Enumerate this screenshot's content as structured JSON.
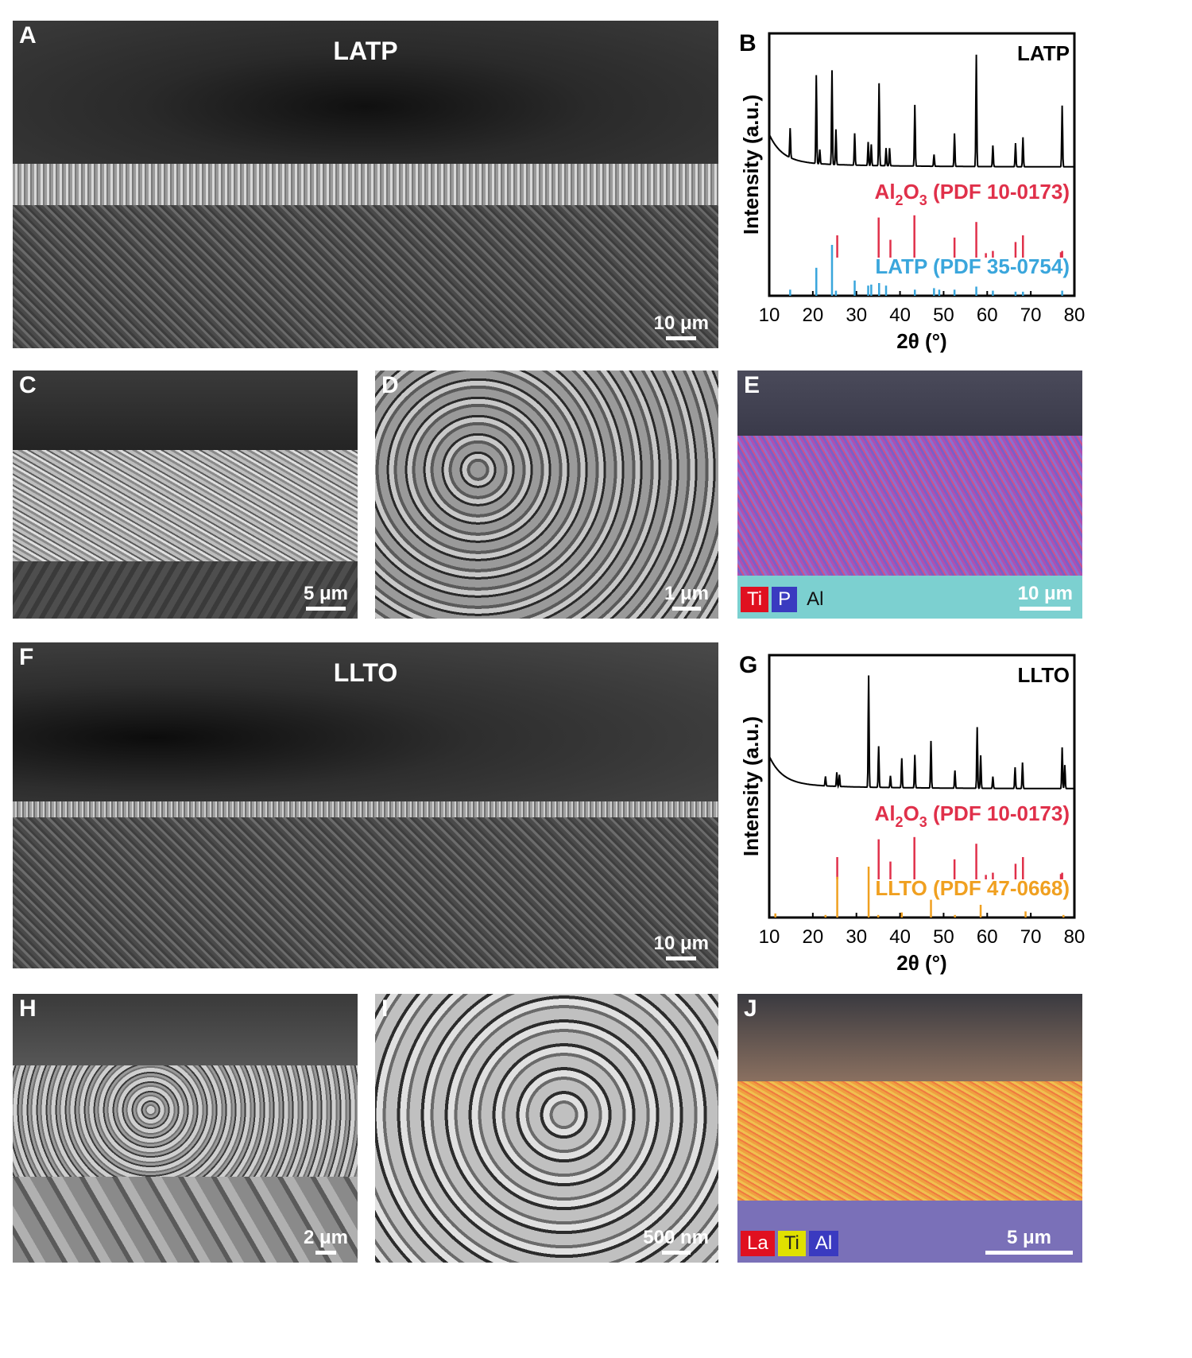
{
  "panels": {
    "A": {
      "label": "A",
      "title": "LATP",
      "scale": "10 μm"
    },
    "C": {
      "label": "C",
      "scale": "5 μm"
    },
    "D": {
      "label": "D",
      "scale": "1 μm"
    },
    "E": {
      "label": "E",
      "scale": "10 μm",
      "legend": [
        "Ti",
        "P",
        "Al"
      ]
    },
    "F": {
      "label": "F",
      "title": "LLTO",
      "scale": "10 μm"
    },
    "H": {
      "label": "H",
      "scale": "2 μm"
    },
    "I": {
      "label": "I",
      "scale": "500 nm"
    },
    "J": {
      "label": "J",
      "scale": "5 μm",
      "legend": [
        "La",
        "Ti",
        "Al"
      ]
    }
  },
  "colors": {
    "al2o3": "#e0304a",
    "latp": "#3aa6dc",
    "llto": "#f0a020",
    "pattern": "#000000",
    "ti_map": "#d01020",
    "p_map": "#3a3ac0",
    "al_map": "#111111",
    "la_map": "#d01020",
    "ti_map_j": "#e0e000",
    "al_map_j": "#3a3ac0"
  },
  "chart_data": [
    {
      "panel": "B",
      "type": "line",
      "label": "B",
      "tag": "LATP",
      "xlabel": "2θ (°)",
      "ylabel": "Intensity (a.u.)",
      "xlim": [
        10,
        80
      ],
      "xticks": [
        10,
        20,
        30,
        40,
        50,
        60,
        70,
        80
      ],
      "pattern_peaks": [
        [
          14.8,
          0.25
        ],
        [
          20.8,
          0.75
        ],
        [
          21.6,
          0.12
        ],
        [
          24.4,
          0.8
        ],
        [
          25.3,
          0.3
        ],
        [
          29.6,
          0.27
        ],
        [
          32.7,
          0.2
        ],
        [
          33.4,
          0.18
        ],
        [
          35.2,
          0.7
        ],
        [
          36.8,
          0.15
        ],
        [
          37.6,
          0.15
        ],
        [
          43.4,
          0.52
        ],
        [
          47.8,
          0.1
        ],
        [
          52.5,
          0.28
        ],
        [
          57.5,
          0.95
        ],
        [
          61.3,
          0.18
        ],
        [
          66.5,
          0.2
        ],
        [
          68.2,
          0.25
        ],
        [
          77.2,
          0.52
        ]
      ],
      "references": [
        {
          "name": "Al2O3 (PDF 10-0173)",
          "sub": "Al",
          "sub_index": "2",
          "o": "O",
          "o_index": "3",
          "rest": "(PDF 10-0173)",
          "color_key": "al2o3",
          "sticks": [
            [
              25.6,
              0.5
            ],
            [
              35.1,
              0.9
            ],
            [
              37.8,
              0.4
            ],
            [
              43.3,
              0.95
            ],
            [
              52.5,
              0.45
            ],
            [
              57.5,
              0.8
            ],
            [
              59.7,
              0.1
            ],
            [
              61.3,
              0.15
            ],
            [
              66.5,
              0.35
            ],
            [
              68.2,
              0.5
            ],
            [
              76.9,
              0.12
            ],
            [
              77.2,
              0.15
            ]
          ]
        },
        {
          "name": "LATP (PDF 35-0754)",
          "color_key": "latp",
          "sticks": [
            [
              14.8,
              0.12
            ],
            [
              20.8,
              0.55
            ],
            [
              24.4,
              1.0
            ],
            [
              25.3,
              0.1
            ],
            [
              29.6,
              0.3
            ],
            [
              32.7,
              0.2
            ],
            [
              33.4,
              0.22
            ],
            [
              35.2,
              0.25
            ],
            [
              36.8,
              0.2
            ],
            [
              43.4,
              0.12
            ],
            [
              47.8,
              0.15
            ],
            [
              49.0,
              0.12
            ],
            [
              52.5,
              0.12
            ],
            [
              57.5,
              0.18
            ],
            [
              61.3,
              0.1
            ],
            [
              66.5,
              0.08
            ],
            [
              68.2,
              0.08
            ],
            [
              77.2,
              0.1
            ]
          ]
        }
      ]
    },
    {
      "panel": "G",
      "type": "line",
      "label": "G",
      "tag": "LLTO",
      "xlabel": "2θ (°)",
      "ylabel": "Intensity (a.u.)",
      "xlim": [
        10,
        80
      ],
      "xticks": [
        10,
        20,
        30,
        40,
        50,
        60,
        70,
        80
      ],
      "pattern_peaks": [
        [
          22.9,
          0.08
        ],
        [
          25.5,
          0.12
        ],
        [
          26.1,
          0.1
        ],
        [
          32.8,
          0.95
        ],
        [
          35.1,
          0.35
        ],
        [
          37.8,
          0.1
        ],
        [
          40.4,
          0.25
        ],
        [
          43.4,
          0.28
        ],
        [
          47.1,
          0.4
        ],
        [
          52.6,
          0.15
        ],
        [
          57.7,
          0.52
        ],
        [
          58.5,
          0.28
        ],
        [
          61.3,
          0.1
        ],
        [
          66.4,
          0.18
        ],
        [
          68.1,
          0.22
        ],
        [
          77.2,
          0.35
        ],
        [
          77.8,
          0.2
        ]
      ],
      "references": [
        {
          "name": "Al2O3 (PDF 10-0173)",
          "sub": "Al",
          "sub_index": "2",
          "o": "O",
          "o_index": "3",
          "rest": "(PDF 10-0173)",
          "color_key": "al2o3",
          "sticks": [
            [
              25.6,
              0.5
            ],
            [
              35.1,
              0.9
            ],
            [
              37.8,
              0.4
            ],
            [
              43.3,
              0.95
            ],
            [
              52.5,
              0.45
            ],
            [
              57.5,
              0.8
            ],
            [
              59.7,
              0.1
            ],
            [
              61.3,
              0.15
            ],
            [
              66.5,
              0.35
            ],
            [
              68.2,
              0.5
            ],
            [
              76.9,
              0.12
            ],
            [
              77.2,
              0.15
            ]
          ]
        },
        {
          "name": "LLTO (PDF 47-0668)",
          "color_key": "llto",
          "sticks": [
            [
              11.4,
              0.08
            ],
            [
              22.9,
              0.05
            ],
            [
              25.6,
              0.8
            ],
            [
              32.8,
              1.0
            ],
            [
              35.0,
              0.05
            ],
            [
              40.4,
              0.1
            ],
            [
              47.1,
              0.35
            ],
            [
              52.6,
              0.05
            ],
            [
              58.5,
              0.25
            ],
            [
              68.8,
              0.12
            ],
            [
              77.5,
              0.05
            ]
          ]
        }
      ]
    }
  ]
}
